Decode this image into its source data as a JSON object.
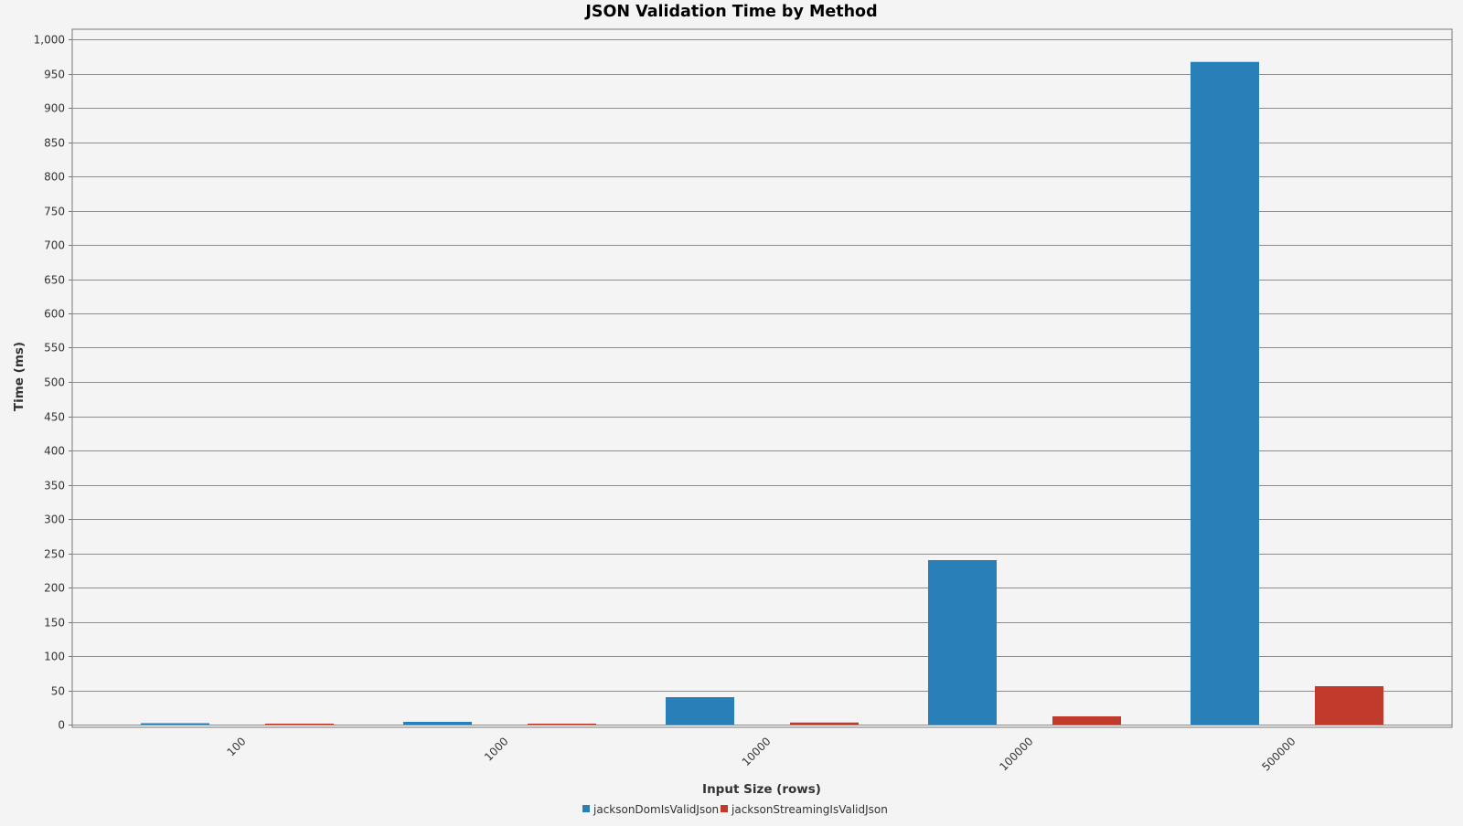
{
  "chart_data": {
    "type": "bar",
    "title": "JSON Validation Time by Method",
    "xlabel": "Input Size (rows)",
    "ylabel": "Time (ms)",
    "categories": [
      "100",
      "1000",
      "10000",
      "100000",
      "500000"
    ],
    "series": [
      {
        "name": "jacksonDomIsValidJson",
        "color": "#2980b9",
        "values": [
          2,
          4,
          40,
          240,
          967
        ]
      },
      {
        "name": "jacksonStreamingIsValidJson",
        "color": "#c0392b",
        "values": [
          0.5,
          1,
          3,
          12,
          56
        ]
      }
    ],
    "ylim": [
      0,
      1000
    ],
    "y_tick_step": 50,
    "y_tick_labels": [
      "0",
      "50",
      "100",
      "150",
      "200",
      "250",
      "300",
      "350",
      "400",
      "450",
      "500",
      "550",
      "600",
      "650",
      "700",
      "750",
      "800",
      "850",
      "900",
      "950",
      "1,000"
    ],
    "x_tick_rotation": "-45deg",
    "grid": true,
    "legend_position": "bottom-center"
  },
  "colors": {
    "background": "#f4f4f4",
    "plot_background": "#f4f4f4",
    "gridline": "#8c8c8c",
    "axis": "#777777"
  }
}
